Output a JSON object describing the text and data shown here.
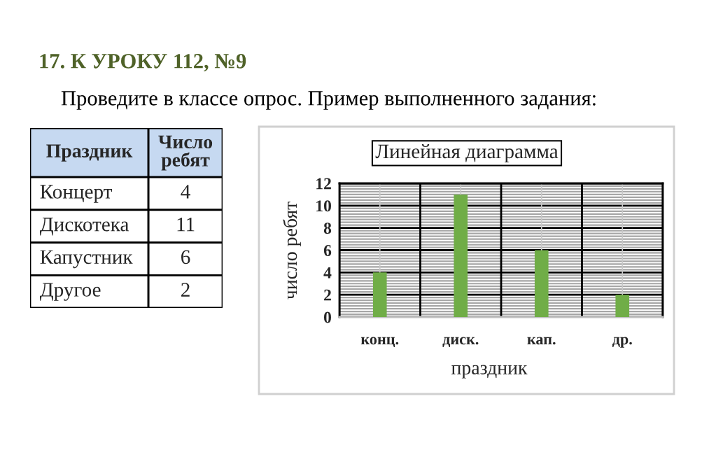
{
  "chart_data": [
    {
      "type": "other",
      "title": "17. К УРОКУ 112, №9",
      "subtitle": "Проведите в классе опрос. Пример выполненного задания:",
      "annotations": [
        "Праздник",
        "Число\nребят",
        "Концерт",
        "4",
        "Дискотека",
        "11",
        "Капустник",
        "6",
        "Другое",
        "2"
      ]
    },
    {
      "type": "bar",
      "title": "Линейная диаграмма",
      "xlabel": "праздник",
      "ylabel": "число ребят",
      "categories": [
        "конц.",
        "диск.",
        "кап.",
        "др."
      ],
      "values": [
        4,
        11,
        6,
        2
      ],
      "color": "#70ad47",
      "ylim": [
        0,
        12
      ],
      "yticks": [
        0,
        {
          "value": 0.25,
          "label": null
        },
        {
          "value": 0.5,
          "label": null
        },
        {
          "value": 0.75,
          "label": null
        },
        {
          "value": 1,
          "label": null
        },
        {
          "value": 1.25,
          "label": null
        },
        {
          "value": 1.5,
          "label": null
        },
        {
          "value": 1.75,
          "label": null
        },
        2,
        {
          "value": 2.25,
          "label": null
        },
        {
          "value": 2.5,
          "label": null
        },
        {
          "value": 2.75,
          "label": null
        },
        {
          "value": 3,
          "label": null
        },
        {
          "value": 3.25,
          "label": null
        },
        {
          "value": 3.5,
          "label": null
        },
        {
          "value": 3.75,
          "label": null
        },
        4,
        {
          "value": 4.25,
          "label": null
        },
        {
          "value": 4.5,
          "label": null
        },
        {
          "value": 4.75,
          "label": null
        },
        {
          "value": 5,
          "label": null
        },
        {
          "value": 5.25,
          "label": null
        },
        {
          "value": 5.5,
          "label": null
        },
        {
          "value": 5.75,
          "label": null
        },
        6,
        {
          "value": 6.25,
          "label": null
        },
        {
          "value": 6.5,
          "label": null
        },
        {
          "value": 6.75,
          "label": null
        },
        {
          "value": 7,
          "label": null
        },
        {
          "value": 7.25,
          "label": null
        },
        {
          "value": 7.5,
          "label": null
        },
        {
          "value": 7.75,
          "label": null
        },
        8,
        {
          "value": 8.25,
          "label": null
        },
        {
          "value": 8.5,
          "label": null
        },
        {
          "value": 8.75,
          "label": null
        },
        {
          "value": 9,
          "label": null
        },
        {
          "value": 9.25,
          "label": null
        },
        {
          "value": 9.5,
          "label": null
        },
        {
          "value": 9.75,
          "label": null
        },
        10,
        {
          "value": 10.25,
          "label": null
        },
        {
          "value": 10.5,
          "label": null
        },
        {
          "value": 10.75,
          "label": null
        },
        {
          "value": 11,
          "label": null
        },
        {
          "value": 11.25,
          "label": null
        },
        {
          "value": 11.5,
          "label": null
        },
        {
          "value": 11.75,
          "label": null
        },
        12
      ],
      "grid": true
    }
  ]
}
